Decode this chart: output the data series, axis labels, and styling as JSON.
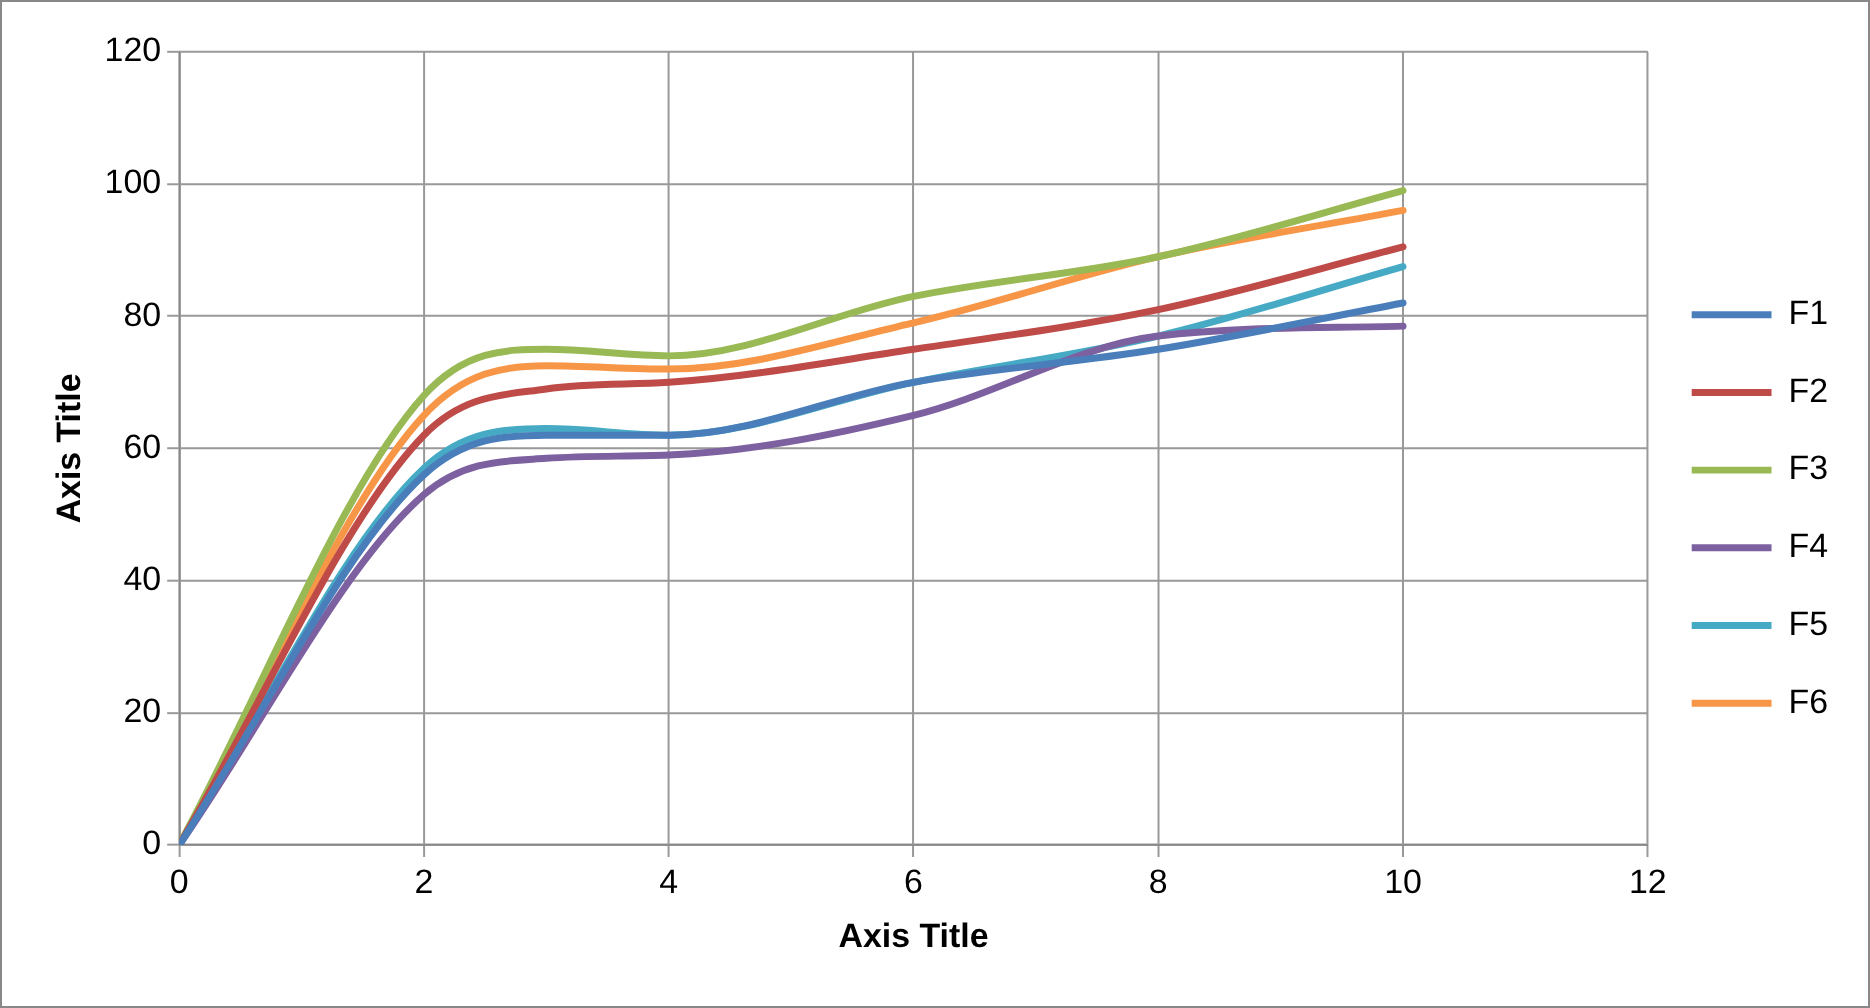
{
  "chart_data": {
    "type": "line",
    "xlabel": "Axis Title",
    "ylabel": "Axis Title",
    "x": [
      0,
      2,
      3,
      4,
      6,
      8,
      10
    ],
    "series": [
      {
        "name": "F1",
        "color": "#4a7ebb",
        "values": [
          0,
          56,
          62,
          62,
          70,
          75,
          82
        ]
      },
      {
        "name": "F2",
        "color": "#be4b48",
        "values": [
          0,
          62,
          69,
          70,
          75,
          81,
          90.5
        ]
      },
      {
        "name": "F3",
        "color": "#98b954",
        "values": [
          0,
          68,
          75,
          74,
          83,
          89,
          99
        ]
      },
      {
        "name": "F4",
        "color": "#7d60a0",
        "values": [
          0,
          53,
          58.5,
          59,
          65,
          77,
          78.5
        ]
      },
      {
        "name": "F5",
        "color": "#46aac5",
        "values": [
          0,
          57,
          63,
          62,
          70,
          77,
          87.5
        ]
      },
      {
        "name": "F6",
        "color": "#f79646",
        "values": [
          0,
          65,
          72.5,
          72,
          79,
          89,
          96
        ]
      }
    ],
    "xlim": [
      0,
      12
    ],
    "xticks": [
      0,
      2,
      4,
      6,
      8,
      10,
      12
    ],
    "ylim": [
      0,
      120
    ],
    "yticks": [
      0,
      20,
      40,
      60,
      80,
      100,
      120
    ],
    "grid": true,
    "legend": "right",
    "marker": "none",
    "line_style": "solid"
  }
}
